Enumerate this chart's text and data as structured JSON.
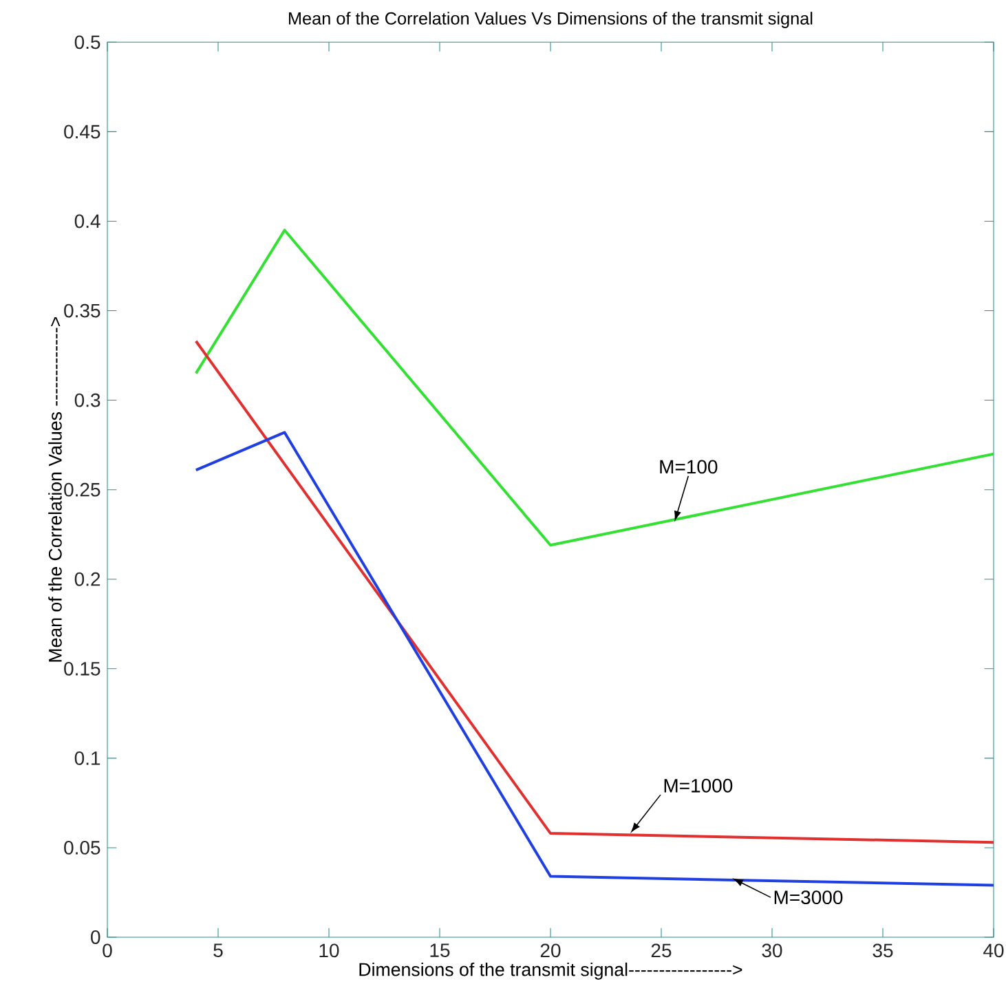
{
  "chart_data": {
    "type": "line",
    "title": "Mean of the Correlation Values Vs Dimensions of the transmit signal",
    "xlabel": "Dimensions of the transmit signal----------------->",
    "ylabel": "Mean of the Correlation Values ------------->",
    "xlim": [
      0,
      40
    ],
    "ylim": [
      0,
      0.5
    ],
    "xticks": [
      0,
      5,
      10,
      15,
      20,
      25,
      30,
      35,
      40
    ],
    "yticks": [
      0,
      0.05,
      0.1,
      0.15,
      0.2,
      0.25,
      0.3,
      0.35,
      0.4,
      0.45,
      0.5
    ],
    "grid": false,
    "marker": "none",
    "line_style": "solid",
    "series": [
      {
        "color": "#33e033",
        "x": [
          4,
          8,
          20,
          40
        ],
        "values": [
          0.315,
          0.395,
          0.219,
          0.27
        ]
      },
      {
        "color": "#e03030",
        "x": [
          4,
          20,
          40
        ],
        "values": [
          0.333,
          0.058,
          0.053
        ]
      },
      {
        "color": "#1f3fe0",
        "x": [
          4,
          8,
          20,
          40
        ],
        "values": [
          0.261,
          0.282,
          0.034,
          0.029
        ]
      }
    ],
    "annotations": [
      {
        "text": "M=100",
        "x": 25.6,
        "y": 0.232
      },
      {
        "text": "M=1000",
        "x": 23.6,
        "y": 0.058
      },
      {
        "text": "M=3000",
        "x": 28.2,
        "y": 0.033
      }
    ]
  }
}
